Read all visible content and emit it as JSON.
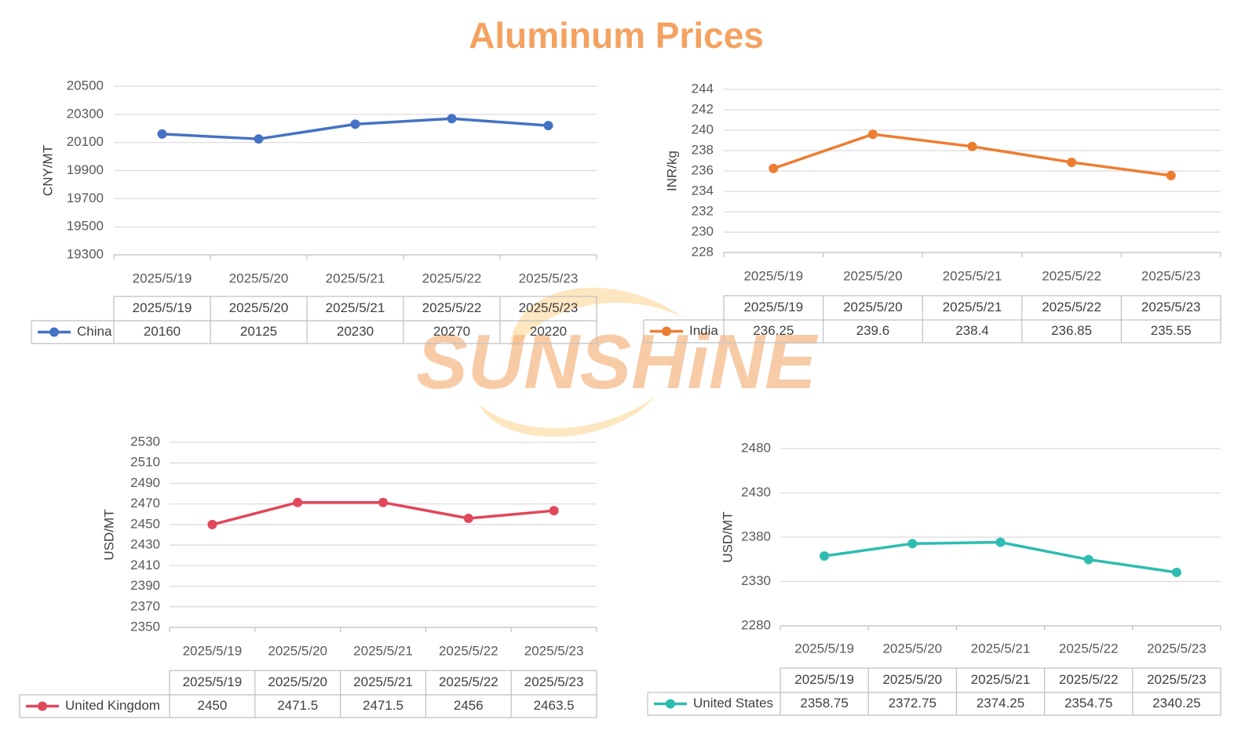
{
  "page": {
    "title": "Aluminum Prices",
    "watermark": "SUNSHiNE",
    "colors": {
      "title": "#F4A261",
      "watermark_text": "#F4A261",
      "watermark_swoosh": "#FBD38D"
    }
  },
  "chart_data": [
    {
      "type": "line",
      "id": "china",
      "categories": [
        "2025/5/19",
        "2025/5/20",
        "2025/5/21",
        "2025/5/22",
        "2025/5/23"
      ],
      "series": [
        {
          "name": "China",
          "values": [
            20160,
            20125,
            20230,
            20270,
            20220
          ],
          "color": "#4472C4"
        }
      ],
      "ylabel": "CNY/MT",
      "ylim": [
        19300,
        20500
      ],
      "yticks": [
        19300,
        19500,
        19700,
        19900,
        20100,
        20300,
        20500
      ],
      "grid": true,
      "data_table": true
    },
    {
      "type": "line",
      "id": "india",
      "categories": [
        "2025/5/19",
        "2025/5/20",
        "2025/5/21",
        "2025/5/22",
        "2025/5/23"
      ],
      "series": [
        {
          "name": "India",
          "values": [
            236.25,
            239.6,
            238.4,
            236.85,
            235.55
          ],
          "color": "#ED7D31"
        }
      ],
      "ylabel": "INR/kg",
      "ylim": [
        228,
        244
      ],
      "yticks": [
        228,
        230,
        232,
        234,
        236,
        238,
        240,
        242,
        244
      ],
      "grid": true,
      "data_table": true
    },
    {
      "type": "line",
      "id": "uk",
      "categories": [
        "2025/5/19",
        "2025/5/20",
        "2025/5/21",
        "2025/5/22",
        "2025/5/23"
      ],
      "series": [
        {
          "name": "United Kingdom",
          "values": [
            2450,
            2471.5,
            2471.5,
            2456,
            2463.5
          ],
          "color": "#E0475B"
        }
      ],
      "ylabel": "USD/MT",
      "ylim": [
        2350,
        2530
      ],
      "yticks": [
        2350,
        2370,
        2390,
        2410,
        2430,
        2450,
        2470,
        2490,
        2510,
        2530
      ],
      "grid": true,
      "data_table": true
    },
    {
      "type": "line",
      "id": "us",
      "categories": [
        "2025/5/19",
        "2025/5/20",
        "2025/5/21",
        "2025/5/22",
        "2025/5/23"
      ],
      "series": [
        {
          "name": "United States",
          "values": [
            2358.75,
            2372.75,
            2374.25,
            2354.75,
            2340.25
          ],
          "color": "#2EBCB0"
        }
      ],
      "ylabel": "USD/MT",
      "ylim": [
        2280,
        2480
      ],
      "yticks": [
        2280,
        2330,
        2380,
        2430,
        2480
      ],
      "grid": true,
      "data_table": true
    }
  ]
}
